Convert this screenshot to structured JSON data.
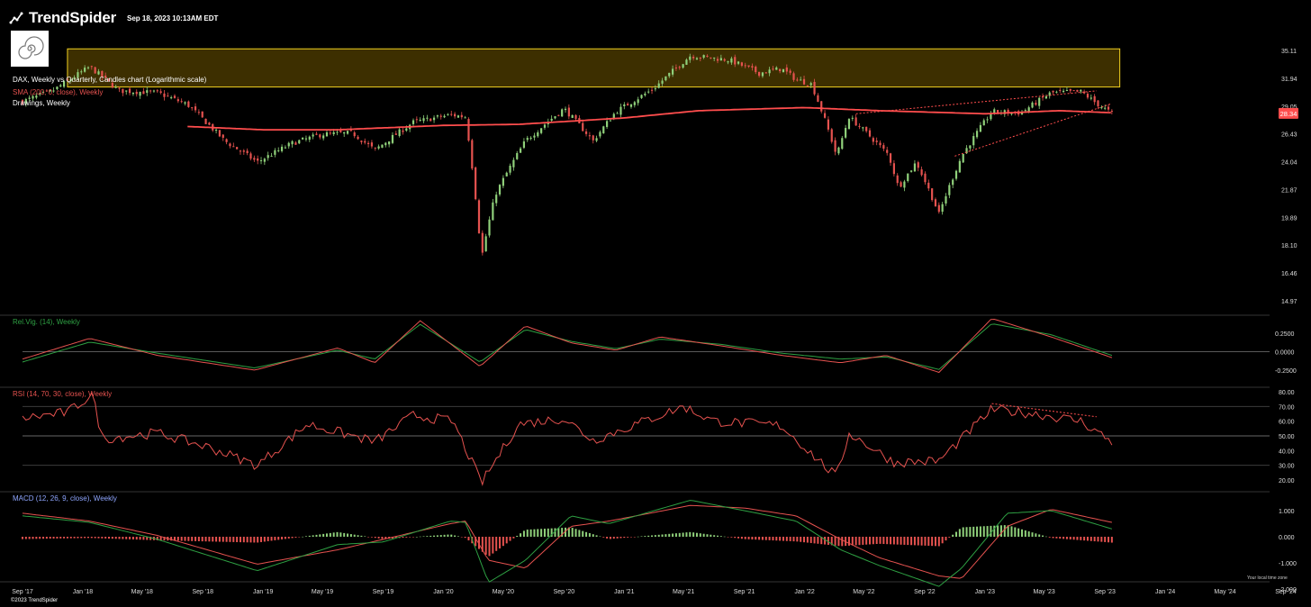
{
  "header": {
    "brand": "TrendSpider",
    "timestamp": "Sep 18, 2023 10:13AM EDT"
  },
  "footer": {
    "copyright": "©2023 TrendSpider",
    "timezone_note": "Your local time zone"
  },
  "legend": {
    "main": "DAX, Weekly vs Quarterly, Candles chart (Logarithmic scale)",
    "sma": "SMA (200, 0, close), Weekly",
    "drawings": "Drawings, Weekly",
    "relvig": "Rel.Vig. (14), Weekly",
    "rsi": "RSI (14, 70, 30, close), Weekly",
    "macd": "MACD (12, 26, 9, close), Weekly"
  },
  "colors": {
    "up": "#8fd07a",
    "down": "#e5524f",
    "sma": "#ff4d4d",
    "zone_fill": "#3d2f00",
    "zone_border": "#f2d021",
    "relvig_main": "#e5524f",
    "relvig_signal": "#2ea043",
    "macd_line": "#2ea043",
    "macd_signal": "#e5524f",
    "rsi": "#e5524f"
  },
  "chart_data": [
    {
      "type": "candlestick",
      "panel": "price",
      "scale": "log",
      "yticks": [
        "35.11",
        "31.94",
        "29.05",
        "26.43",
        "24.04",
        "21.87",
        "19.89",
        "18.10",
        "16.46",
        "14.97"
      ],
      "last_price_label": "28.34",
      "resistance_zone": [
        31.0,
        35.3
      ],
      "close_path": [
        {
          "x": "2017-09-01",
          "y": 29.5
        },
        {
          "x": "2017-11-01",
          "y": 30.6
        },
        {
          "x": "2018-01-15",
          "y": 33.2
        },
        {
          "x": "2018-03-15",
          "y": 30.6
        },
        {
          "x": "2018-06-01",
          "y": 30.4
        },
        {
          "x": "2018-08-01",
          "y": 29.2
        },
        {
          "x": "2018-10-15",
          "y": 25.8
        },
        {
          "x": "2018-12-20",
          "y": 24.0
        },
        {
          "x": "2019-03-01",
          "y": 25.6
        },
        {
          "x": "2019-05-01",
          "y": 26.4
        },
        {
          "x": "2019-07-01",
          "y": 26.5
        },
        {
          "x": "2019-08-15",
          "y": 25.0
        },
        {
          "x": "2019-11-01",
          "y": 27.5
        },
        {
          "x": "2020-01-15",
          "y": 28.2
        },
        {
          "x": "2020-02-15",
          "y": 28.0
        },
        {
          "x": "2020-03-18",
          "y": 17.3
        },
        {
          "x": "2020-04-15",
          "y": 21.5
        },
        {
          "x": "2020-06-15",
          "y": 25.8
        },
        {
          "x": "2020-09-01",
          "y": 28.8
        },
        {
          "x": "2020-10-30",
          "y": 25.8
        },
        {
          "x": "2020-12-15",
          "y": 28.5
        },
        {
          "x": "2021-03-01",
          "y": 30.8
        },
        {
          "x": "2021-05-15",
          "y": 34.5
        },
        {
          "x": "2021-08-01",
          "y": 34.0
        },
        {
          "x": "2021-10-01",
          "y": 32.5
        },
        {
          "x": "2021-11-15",
          "y": 33.0
        },
        {
          "x": "2021-12-15",
          "y": 31.8
        },
        {
          "x": "2022-01-15",
          "y": 31.3
        },
        {
          "x": "2022-03-07",
          "y": 24.5
        },
        {
          "x": "2022-04-01",
          "y": 28.0
        },
        {
          "x": "2022-06-20",
          "y": 24.6
        },
        {
          "x": "2022-07-10",
          "y": 22.0
        },
        {
          "x": "2022-08-15",
          "y": 24.0
        },
        {
          "x": "2022-09-30",
          "y": 20.1
        },
        {
          "x": "2022-11-15",
          "y": 24.5
        },
        {
          "x": "2023-01-15",
          "y": 28.5
        },
        {
          "x": "2023-03-15",
          "y": 28.4
        },
        {
          "x": "2023-05-15",
          "y": 30.4
        },
        {
          "x": "2023-07-15",
          "y": 30.5
        },
        {
          "x": "2023-08-15",
          "y": 29.3
        },
        {
          "x": "2023-09-15",
          "y": 28.34
        }
      ],
      "sma_path": [
        {
          "x": "2018-08-01",
          "y": 27.1
        },
        {
          "x": "2019-01-01",
          "y": 26.8
        },
        {
          "x": "2019-06-01",
          "y": 26.8
        },
        {
          "x": "2020-01-01",
          "y": 27.2
        },
        {
          "x": "2020-06-01",
          "y": 27.3
        },
        {
          "x": "2021-01-01",
          "y": 27.9
        },
        {
          "x": "2021-06-01",
          "y": 28.6
        },
        {
          "x": "2022-01-01",
          "y": 28.9
        },
        {
          "x": "2022-06-01",
          "y": 28.6
        },
        {
          "x": "2023-01-01",
          "y": 28.3
        },
        {
          "x": "2023-06-01",
          "y": 28.6
        },
        {
          "x": "2023-09-15",
          "y": 28.4
        }
      ],
      "trendlines": [
        {
          "from": {
            "x": "2022-04-15",
            "y": 28.3
          },
          "to": {
            "x": "2023-08-15",
            "y": 30.6
          }
        },
        {
          "from": {
            "x": "2022-11-01",
            "y": 24.5
          },
          "to": {
            "x": "2023-09-15",
            "y": 29.3
          }
        }
      ]
    },
    {
      "type": "line",
      "panel": "relvig",
      "yticks": [
        "0.2500",
        "0.0000",
        "-0.2500"
      ],
      "main": [
        {
          "x": "2017-09-01",
          "y": -0.1
        },
        {
          "x": "2018-01-15",
          "y": 0.18
        },
        {
          "x": "2018-06-01",
          "y": -0.05
        },
        {
          "x": "2018-12-15",
          "y": -0.25
        },
        {
          "x": "2019-06-01",
          "y": 0.05
        },
        {
          "x": "2019-08-15",
          "y": -0.15
        },
        {
          "x": "2019-11-15",
          "y": 0.42
        },
        {
          "x": "2020-03-15",
          "y": -0.2
        },
        {
          "x": "2020-06-15",
          "y": 0.35
        },
        {
          "x": "2020-09-15",
          "y": 0.12
        },
        {
          "x": "2020-12-15",
          "y": 0.02
        },
        {
          "x": "2021-03-15",
          "y": 0.2
        },
        {
          "x": "2021-07-15",
          "y": 0.08
        },
        {
          "x": "2021-11-15",
          "y": -0.05
        },
        {
          "x": "2022-03-15",
          "y": -0.15
        },
        {
          "x": "2022-06-15",
          "y": -0.05
        },
        {
          "x": "2022-09-30",
          "y": -0.28
        },
        {
          "x": "2023-01-15",
          "y": 0.45
        },
        {
          "x": "2023-05-15",
          "y": 0.2
        },
        {
          "x": "2023-09-15",
          "y": -0.08
        }
      ],
      "signal": [
        {
          "x": "2017-09-01",
          "y": -0.14
        },
        {
          "x": "2018-01-15",
          "y": 0.13
        },
        {
          "x": "2018-06-01",
          "y": -0.02
        },
        {
          "x": "2018-12-15",
          "y": -0.22
        },
        {
          "x": "2019-06-01",
          "y": 0.02
        },
        {
          "x": "2019-08-15",
          "y": -0.1
        },
        {
          "x": "2019-11-15",
          "y": 0.37
        },
        {
          "x": "2020-03-15",
          "y": -0.14
        },
        {
          "x": "2020-06-15",
          "y": 0.3
        },
        {
          "x": "2020-09-15",
          "y": 0.14
        },
        {
          "x": "2020-12-15",
          "y": 0.04
        },
        {
          "x": "2021-03-15",
          "y": 0.17
        },
        {
          "x": "2021-07-15",
          "y": 0.1
        },
        {
          "x": "2021-11-15",
          "y": -0.02
        },
        {
          "x": "2022-03-15",
          "y": -0.1
        },
        {
          "x": "2022-06-15",
          "y": -0.07
        },
        {
          "x": "2022-09-30",
          "y": -0.24
        },
        {
          "x": "2023-01-15",
          "y": 0.38
        },
        {
          "x": "2023-05-15",
          "y": 0.23
        },
        {
          "x": "2023-09-15",
          "y": -0.05
        }
      ]
    },
    {
      "type": "line",
      "panel": "rsi",
      "yticks": [
        "80.00",
        "70.00",
        "60.00",
        "50.00",
        "40.00",
        "30.00",
        "20.00"
      ],
      "levels": [
        70,
        50,
        30
      ],
      "rsi": [
        {
          "x": "2017-09-01",
          "y": 62
        },
        {
          "x": "2017-12-01",
          "y": 66
        },
        {
          "x": "2018-01-20",
          "y": 78
        },
        {
          "x": "2018-02-10",
          "y": 48
        },
        {
          "x": "2018-06-01",
          "y": 52
        },
        {
          "x": "2018-09-15",
          "y": 42
        },
        {
          "x": "2018-12-20",
          "y": 30
        },
        {
          "x": "2019-04-01",
          "y": 58
        },
        {
          "x": "2019-08-15",
          "y": 46
        },
        {
          "x": "2019-11-01",
          "y": 64
        },
        {
          "x": "2020-01-20",
          "y": 60
        },
        {
          "x": "2020-03-18",
          "y": 18
        },
        {
          "x": "2020-06-01",
          "y": 58
        },
        {
          "x": "2020-09-01",
          "y": 62
        },
        {
          "x": "2020-10-30",
          "y": 47
        },
        {
          "x": "2021-05-01",
          "y": 70
        },
        {
          "x": "2021-07-01",
          "y": 60
        },
        {
          "x": "2021-11-15",
          "y": 57
        },
        {
          "x": "2022-03-07",
          "y": 22
        },
        {
          "x": "2022-04-01",
          "y": 52
        },
        {
          "x": "2022-07-01",
          "y": 32
        },
        {
          "x": "2022-09-30",
          "y": 33
        },
        {
          "x": "2023-01-15",
          "y": 68
        },
        {
          "x": "2023-04-15",
          "y": 65
        },
        {
          "x": "2023-07-15",
          "y": 60
        },
        {
          "x": "2023-09-15",
          "y": 46
        }
      ],
      "trendline": {
        "from": {
          "x": "2023-01-15",
          "y": 72
        },
        "to": {
          "x": "2023-08-15",
          "y": 63
        }
      }
    },
    {
      "type": "bar+line",
      "panel": "macd",
      "yticks": [
        "1.000",
        "0.000",
        "-1.000",
        "-2.000"
      ],
      "macd": [
        {
          "x": "2017-09-01",
          "y": 0.8
        },
        {
          "x": "2018-01-15",
          "y": 0.55
        },
        {
          "x": "2018-06-01",
          "y": -0.1
        },
        {
          "x": "2018-12-20",
          "y": -1.3
        },
        {
          "x": "2019-06-01",
          "y": -0.3
        },
        {
          "x": "2019-09-01",
          "y": -0.2
        },
        {
          "x": "2020-01-15",
          "y": 0.6
        },
        {
          "x": "2020-02-15",
          "y": 0.55
        },
        {
          "x": "2020-04-01",
          "y": -1.75
        },
        {
          "x": "2020-06-15",
          "y": -0.9
        },
        {
          "x": "2020-09-15",
          "y": 0.8
        },
        {
          "x": "2020-12-01",
          "y": 0.5
        },
        {
          "x": "2021-05-15",
          "y": 1.4
        },
        {
          "x": "2021-09-01",
          "y": 1.0
        },
        {
          "x": "2021-12-15",
          "y": 0.6
        },
        {
          "x": "2022-03-15",
          "y": -0.5
        },
        {
          "x": "2022-06-01",
          "y": -1.1
        },
        {
          "x": "2022-09-30",
          "y": -1.9
        },
        {
          "x": "2022-11-15",
          "y": -1.2
        },
        {
          "x": "2023-02-15",
          "y": 0.9
        },
        {
          "x": "2023-05-15",
          "y": 1.0
        },
        {
          "x": "2023-09-15",
          "y": 0.3
        }
      ],
      "signal": [
        {
          "x": "2017-09-01",
          "y": 0.9
        },
        {
          "x": "2018-01-15",
          "y": 0.6
        },
        {
          "x": "2018-06-01",
          "y": 0.05
        },
        {
          "x": "2018-12-20",
          "y": -1.05
        },
        {
          "x": "2019-06-01",
          "y": -0.5
        },
        {
          "x": "2019-09-01",
          "y": -0.1
        },
        {
          "x": "2020-01-15",
          "y": 0.5
        },
        {
          "x": "2020-02-15",
          "y": 0.6
        },
        {
          "x": "2020-04-01",
          "y": -0.9
        },
        {
          "x": "2020-06-15",
          "y": -1.2
        },
        {
          "x": "2020-09-15",
          "y": 0.4
        },
        {
          "x": "2020-12-01",
          "y": 0.6
        },
        {
          "x": "2021-05-15",
          "y": 1.2
        },
        {
          "x": "2021-09-01",
          "y": 1.1
        },
        {
          "x": "2021-12-15",
          "y": 0.8
        },
        {
          "x": "2022-03-15",
          "y": -0.1
        },
        {
          "x": "2022-06-01",
          "y": -0.8
        },
        {
          "x": "2022-09-30",
          "y": -1.5
        },
        {
          "x": "2022-11-15",
          "y": -1.6
        },
        {
          "x": "2023-02-15",
          "y": 0.4
        },
        {
          "x": "2023-05-15",
          "y": 1.05
        },
        {
          "x": "2023-09-15",
          "y": 0.55
        }
      ]
    }
  ],
  "xaxis": {
    "labels": [
      "Sep '17",
      "Jan '18",
      "May '18",
      "Sep '18",
      "Jan '19",
      "May '19",
      "Sep '19",
      "Jan '20",
      "May '20",
      "Sep '20",
      "Jan '21",
      "May '21",
      "Sep '21",
      "Jan '22",
      "May '22",
      "Sep '22",
      "Jan '23",
      "May '23",
      "Sep '23",
      "Jan '24",
      "May '24",
      "Sep '24"
    ]
  }
}
